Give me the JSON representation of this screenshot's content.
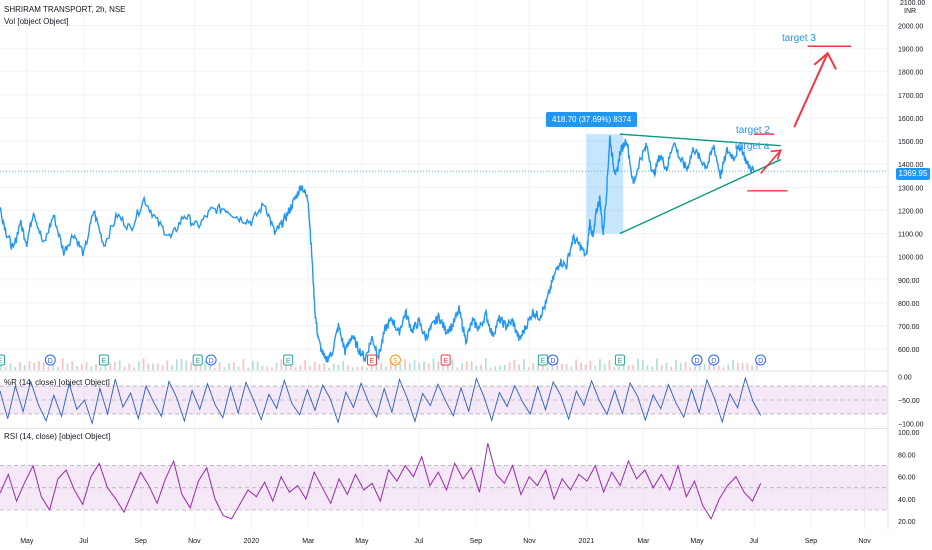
{
  "header": {
    "symbol_line": "SHRIRAM TRANSPORT, 2h, NSE",
    "volume_line": "Vol [object Object]",
    "currency": "INR",
    "top_price_label": "2100.00"
  },
  "price_badge": "1369.95",
  "colors": {
    "price": "#2196f3",
    "triangle": "#089981",
    "annotation_red": "#f23645",
    "band": "#e1bee7",
    "rsi": "#9c27b0",
    "williams": "#2a5dbf",
    "label_bg": "#2196f3"
  },
  "annotations": {
    "range_label": "418.70 (37.69%) 8374",
    "target2": "target 2",
    "target3": "target 3",
    "target_a": "Target a"
  },
  "events": [
    {
      "letter": "E",
      "date": "2019.25",
      "kind": "earnings"
    },
    {
      "letter": "D",
      "date": "2019.40",
      "kind": "dividend"
    },
    {
      "letter": "E",
      "date": "2019.56",
      "kind": "earnings"
    },
    {
      "letter": "E",
      "date": "2019.84",
      "kind": "earnings"
    },
    {
      "letter": "D",
      "date": "2019.88",
      "kind": "dividend"
    },
    {
      "letter": "E",
      "date": "2020.11",
      "kind": "earnings"
    },
    {
      "letter": "E",
      "date": "2020.36",
      "kind": "earnings-red"
    },
    {
      "letter": "S",
      "date": "2020.43",
      "kind": "split"
    },
    {
      "letter": "E",
      "date": "2020.58",
      "kind": "earnings-red"
    },
    {
      "letter": "E",
      "date": "2020.87",
      "kind": "earnings"
    },
    {
      "letter": "D",
      "date": "2020.90",
      "kind": "dividend"
    },
    {
      "letter": "E",
      "date": "2021.10",
      "kind": "earnings"
    },
    {
      "letter": "D",
      "date": "2021.33",
      "kind": "dividend"
    },
    {
      "letter": "D",
      "date": "2021.38",
      "kind": "dividend"
    },
    {
      "letter": "D",
      "date": "2021.52",
      "kind": "dividend"
    }
  ],
  "chart_data": [
    {
      "type": "line",
      "title": "SHRIRAM TRANSPORT, 2h, NSE",
      "ylabel": "INR",
      "x_ticks": [
        {
          "label": "May",
          "x": 2019.33
        },
        {
          "label": "Jul",
          "x": 2019.5
        },
        {
          "label": "Sep",
          "x": 2019.67
        },
        {
          "label": "Nov",
          "x": 2019.83
        },
        {
          "label": "2020",
          "x": 2020.0
        },
        {
          "label": "Mar",
          "x": 2020.17
        },
        {
          "label": "May",
          "x": 2020.33
        },
        {
          "label": "Jul",
          "x": 2020.5
        },
        {
          "label": "Sep",
          "x": 2020.67
        },
        {
          "label": "Nov",
          "x": 2020.83
        },
        {
          "label": "2021",
          "x": 2021.0
        },
        {
          "label": "Mar",
          "x": 2021.17
        },
        {
          "label": "May",
          "x": 2021.33
        },
        {
          "label": "Jul",
          "x": 2021.5
        },
        {
          "label": "Sep",
          "x": 2021.67
        },
        {
          "label": "Nov",
          "x": 2021.83
        }
      ],
      "y_ticks": [
        600,
        700,
        800,
        900,
        1000,
        1100,
        1200,
        1300,
        1400,
        1500,
        1600,
        1700,
        1800,
        1900,
        2000
      ],
      "ylim": [
        510,
        2110
      ],
      "series": [
        {
          "name": "",
          "x": [
            2019.25,
            2019.27,
            2019.29,
            2019.31,
            2019.33,
            2019.35,
            2019.38,
            2019.41,
            2019.44,
            2019.47,
            2019.5,
            2019.53,
            2019.56,
            2019.6,
            2019.64,
            2019.68,
            2019.72,
            2019.76,
            2019.8,
            2019.84,
            2019.88,
            2019.92,
            2019.96,
            2020.0,
            2020.04,
            2020.07,
            2020.09,
            2020.11,
            2020.13,
            2020.15,
            2020.17,
            2020.18,
            2020.19,
            2020.2,
            2020.22,
            2020.24,
            2020.26,
            2020.28,
            2020.3,
            2020.32,
            2020.34,
            2020.36,
            2020.38,
            2020.4,
            2020.42,
            2020.44,
            2020.46,
            2020.48,
            2020.5,
            2020.52,
            2020.54,
            2020.56,
            2020.58,
            2020.6,
            2020.62,
            2020.64,
            2020.66,
            2020.68,
            2020.7,
            2020.72,
            2020.74,
            2020.76,
            2020.78,
            2020.8,
            2020.82,
            2020.84,
            2020.86,
            2020.88,
            2020.9,
            2020.92,
            2020.94,
            2020.96,
            2020.98,
            2021.0,
            2021.01,
            2021.02,
            2021.03,
            2021.04,
            2021.05,
            2021.06,
            2021.07,
            2021.08,
            2021.09,
            2021.1,
            2021.12,
            2021.14,
            2021.16,
            2021.18,
            2021.2,
            2021.22,
            2021.24,
            2021.26,
            2021.28,
            2021.3,
            2021.32,
            2021.34,
            2021.36,
            2021.38,
            2021.4,
            2021.42,
            2021.44,
            2021.46,
            2021.48,
            2021.5
          ],
          "y": [
            1210,
            1100,
            1030,
            1150,
            1060,
            1200,
            1050,
            1180,
            1020,
            1100,
            1010,
            1200,
            1050,
            1180,
            1120,
            1250,
            1150,
            1080,
            1180,
            1130,
            1200,
            1210,
            1170,
            1150,
            1230,
            1100,
            1140,
            1190,
            1250,
            1310,
            1240,
            1020,
            760,
            640,
            550,
            580,
            700,
            590,
            660,
            600,
            560,
            650,
            570,
            690,
            730,
            670,
            760,
            680,
            720,
            650,
            700,
            740,
            680,
            700,
            770,
            640,
            720,
            690,
            750,
            660,
            730,
            700,
            720,
            640,
            700,
            760,
            740,
            800,
            900,
            980,
            960,
            1080,
            1050,
            1000,
            1150,
            1080,
            1200,
            1250,
            1100,
            1280,
            1520,
            1400,
            1350,
            1450,
            1510,
            1310,
            1420,
            1480,
            1350,
            1440,
            1380,
            1500,
            1420,
            1380,
            1470,
            1420,
            1390,
            1480,
            1350,
            1460,
            1430,
            1480,
            1400,
            1370
          ]
        }
      ],
      "current_price": 1369.95
    },
    {
      "type": "line",
      "title": "%R (14, close) [object Object]",
      "y_ticks": [
        0,
        -50,
        -100
      ],
      "y_tick_labels": [
        "0.00",
        "−50.00",
        "−100.00"
      ],
      "ylim": [
        -108,
        8
      ],
      "band": [
        -20,
        -80
      ],
      "series": [
        {
          "name": "",
          "values": [
            -30,
            -90,
            -20,
            -75,
            -10,
            -60,
            -95,
            -40,
            -85,
            -15,
            -70,
            -50,
            -100,
            -25,
            -80,
            -5,
            -65,
            -35,
            -90,
            -20,
            -55,
            -85,
            -10,
            -45,
            -95,
            -30,
            -70,
            -15,
            -60,
            -88,
            -22,
            -78,
            -12,
            -50,
            -92,
            -38,
            -68,
            -8,
            -58,
            -82,
            -28,
            -72,
            -18,
            -48,
            -98,
            -33,
            -66,
            -14,
            -56,
            -86,
            -26,
            -76,
            -6,
            -46,
            -96,
            -36,
            -62,
            -16,
            -52,
            -84,
            -24,
            -74,
            -4,
            -44,
            -94,
            -34,
            -64,
            -19,
            -54,
            -80,
            -21,
            -71,
            -11,
            -41,
            -91,
            -31,
            -61,
            -9,
            -51,
            -81,
            -29,
            -79,
            -13,
            -43,
            -93,
            -39,
            -69,
            -17,
            -57,
            -87,
            -27,
            -77,
            -7,
            -47,
            -97,
            -37,
            -67,
            -3,
            -53,
            -83
          ]
        }
      ]
    },
    {
      "type": "line",
      "title": "RSI (14, close) [object Object]",
      "y_ticks": [
        20,
        40,
        60,
        80,
        100
      ],
      "y_tick_labels": [
        "20.00",
        "40.00",
        "60.00",
        "80.00",
        "100.00"
      ],
      "ylim": [
        12,
        102
      ],
      "band": [
        70,
        30
      ],
      "series": [
        {
          "name": "",
          "values": [
            45,
            62,
            38,
            55,
            70,
            42,
            30,
            58,
            66,
            48,
            35,
            60,
            72,
            50,
            40,
            28,
            46,
            64,
            52,
            36,
            58,
            74,
            44,
            32,
            56,
            68,
            40,
            25,
            22,
            35,
            48,
            42,
            55,
            38,
            60,
            46,
            52,
            40,
            64,
            50,
            36,
            58,
            44,
            62,
            48,
            54,
            38,
            66,
            56,
            70,
            60,
            78,
            52,
            64,
            48,
            72,
            58,
            68,
            46,
            90,
            62,
            54,
            70,
            44,
            60,
            52,
            66,
            40,
            58,
            48,
            62,
            56,
            70,
            46,
            64,
            52,
            74,
            58,
            66,
            50,
            62,
            48,
            70,
            42,
            56,
            34,
            22,
            40,
            52,
            60,
            46,
            38,
            54
          ]
        }
      ]
    }
  ]
}
